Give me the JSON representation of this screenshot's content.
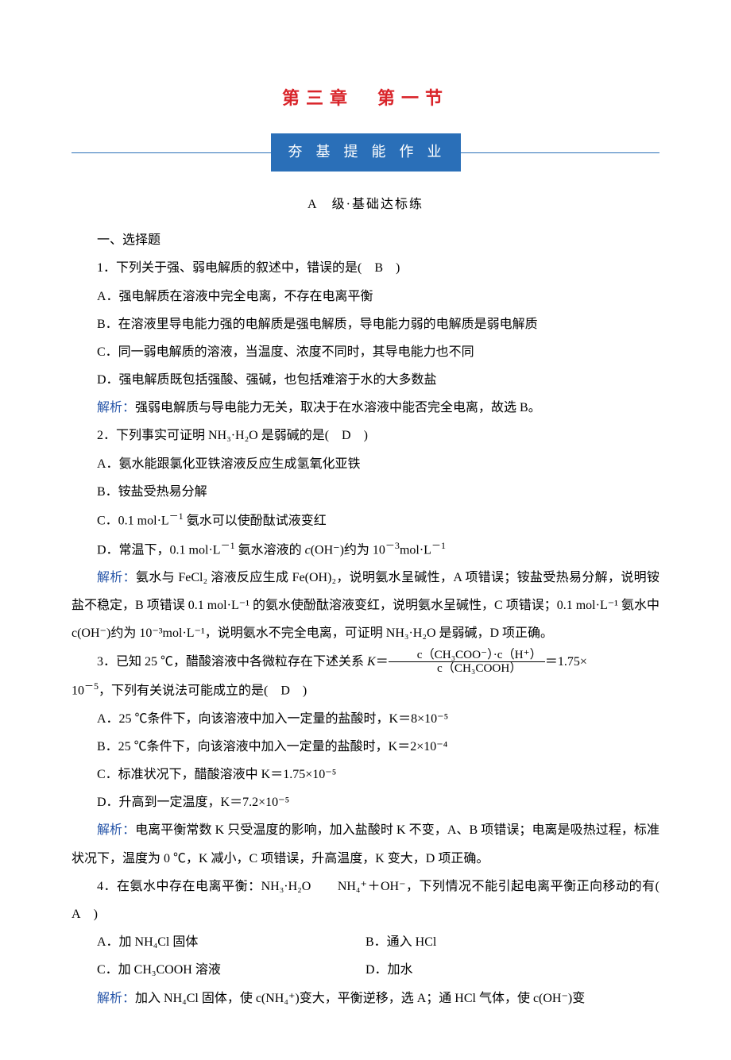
{
  "chapter_title": "第三章　第一节",
  "banner": "夯 基 提 能 作 业",
  "level": "A　级·基础达标练",
  "sec_select": "一、选择题",
  "q1": {
    "stem_pre": "1．下列关于强、弱电解质的叙述中，错误的是(　",
    "ans": "B",
    "stem_post": "　)",
    "a": "A．强电解质在溶液中完全电离，不存在电离平衡",
    "b": "B．在溶液里导电能力强的电解质是强电解质，导电能力弱的电解质是弱电解质",
    "c": "C．同一弱电解质的溶液，当温度、浓度不同时，其导电能力也不同",
    "d": "D．强电解质既包括强酸、强碱，也包括难溶于水的大多数盐",
    "exp_label": "解析：",
    "exp": "强弱电解质与导电能力无关，取决于在水溶液中能否完全电离，故选 B。"
  },
  "q2": {
    "stem": "2．下列事实可证明 NH₃·H₂O 是弱碱的是(　",
    "ans": "D",
    "stem_post": "　)",
    "a": "A．氨水能跟氯化亚铁溶液反应生成氢氧化亚铁",
    "b": "B．铵盐受热易分解",
    "c_pre": "C．0.1 mol·L",
    "c_sup": "－1",
    "c_post": " 氨水可以使酚酞试液变红",
    "d_pre": "D．常温下，0.1 mol·L",
    "d_sup1": "－1",
    "d_mid": " 氨水溶液的 ",
    "d_coh": "c",
    "d_oh": "(OH⁻)约为 10",
    "d_sup2": "－3",
    "d_post": "mol·L",
    "d_sup3": "－1",
    "exp_label": "解析：",
    "exp": "氨水与 FeCl₂ 溶液反应生成 Fe(OH)₂，说明氨水呈碱性，A 项错误；铵盐受热易分解，说明铵盐不稳定，B 项错误 0.1 mol·L⁻¹ 的氨水使酚酞溶液变红，说明氨水呈碱性，C 项错误；0.1 mol·L⁻¹ 氨水中 c(OH⁻)约为 10⁻³mol·L⁻¹，说明氨水不完全电离，可证明 NH₃·H₂O 是弱碱，D 项正确。"
  },
  "q3": {
    "stem_pre": "3．已知 25 ℃，醋酸溶液中各微粒存在下述关系 ",
    "k": "K",
    "eq": "＝",
    "num_pre": "c（CH₃COO⁻）·c（H⁺）",
    "den": "c（CH₃COOH）",
    "after_frac": "＝1.75×",
    "line2_pre": "10",
    "line2_sup": "－5",
    "line2_post": "，下列有关说法可能成立的是(　",
    "ans": "D",
    "stem_post": "　)",
    "a": "A．25 ℃条件下，向该溶液中加入一定量的盐酸时，K＝8×10⁻⁵",
    "b": "B．25 ℃条件下，向该溶液中加入一定量的盐酸时，K＝2×10⁻⁴",
    "c": "C．标准状况下，醋酸溶液中 K＝1.75×10⁻⁵",
    "d": "D．升高到一定温度，K＝7.2×10⁻⁵",
    "exp_label": "解析：",
    "exp": "电离平衡常数 K 只受温度的影响，加入盐酸时 K 不变，A、B 项错误；电离是吸热过程，标准状况下，温度为 0 ℃，K 减小，C 项错误，升高温度，K 变大，D 项正确。"
  },
  "q4": {
    "stem_pre": "4．在氨水中存在电离平衡：NH₃·H₂O　　NH₄⁺＋OH⁻，下列情况不能引起电离平衡正向移动的有(　",
    "ans": "A",
    "stem_post": "　)",
    "a": "A．加 NH₄Cl 固体",
    "b": "B．通入 HCl",
    "c": "C．加 CH₃COOH 溶液",
    "d": "D．加水",
    "exp_label": "解析：",
    "exp": "加入 NH₄Cl 固体，使 c(NH₄⁺)变大，平衡逆移，选 A；通 HCl 气体，使 c(OH⁻)变"
  }
}
